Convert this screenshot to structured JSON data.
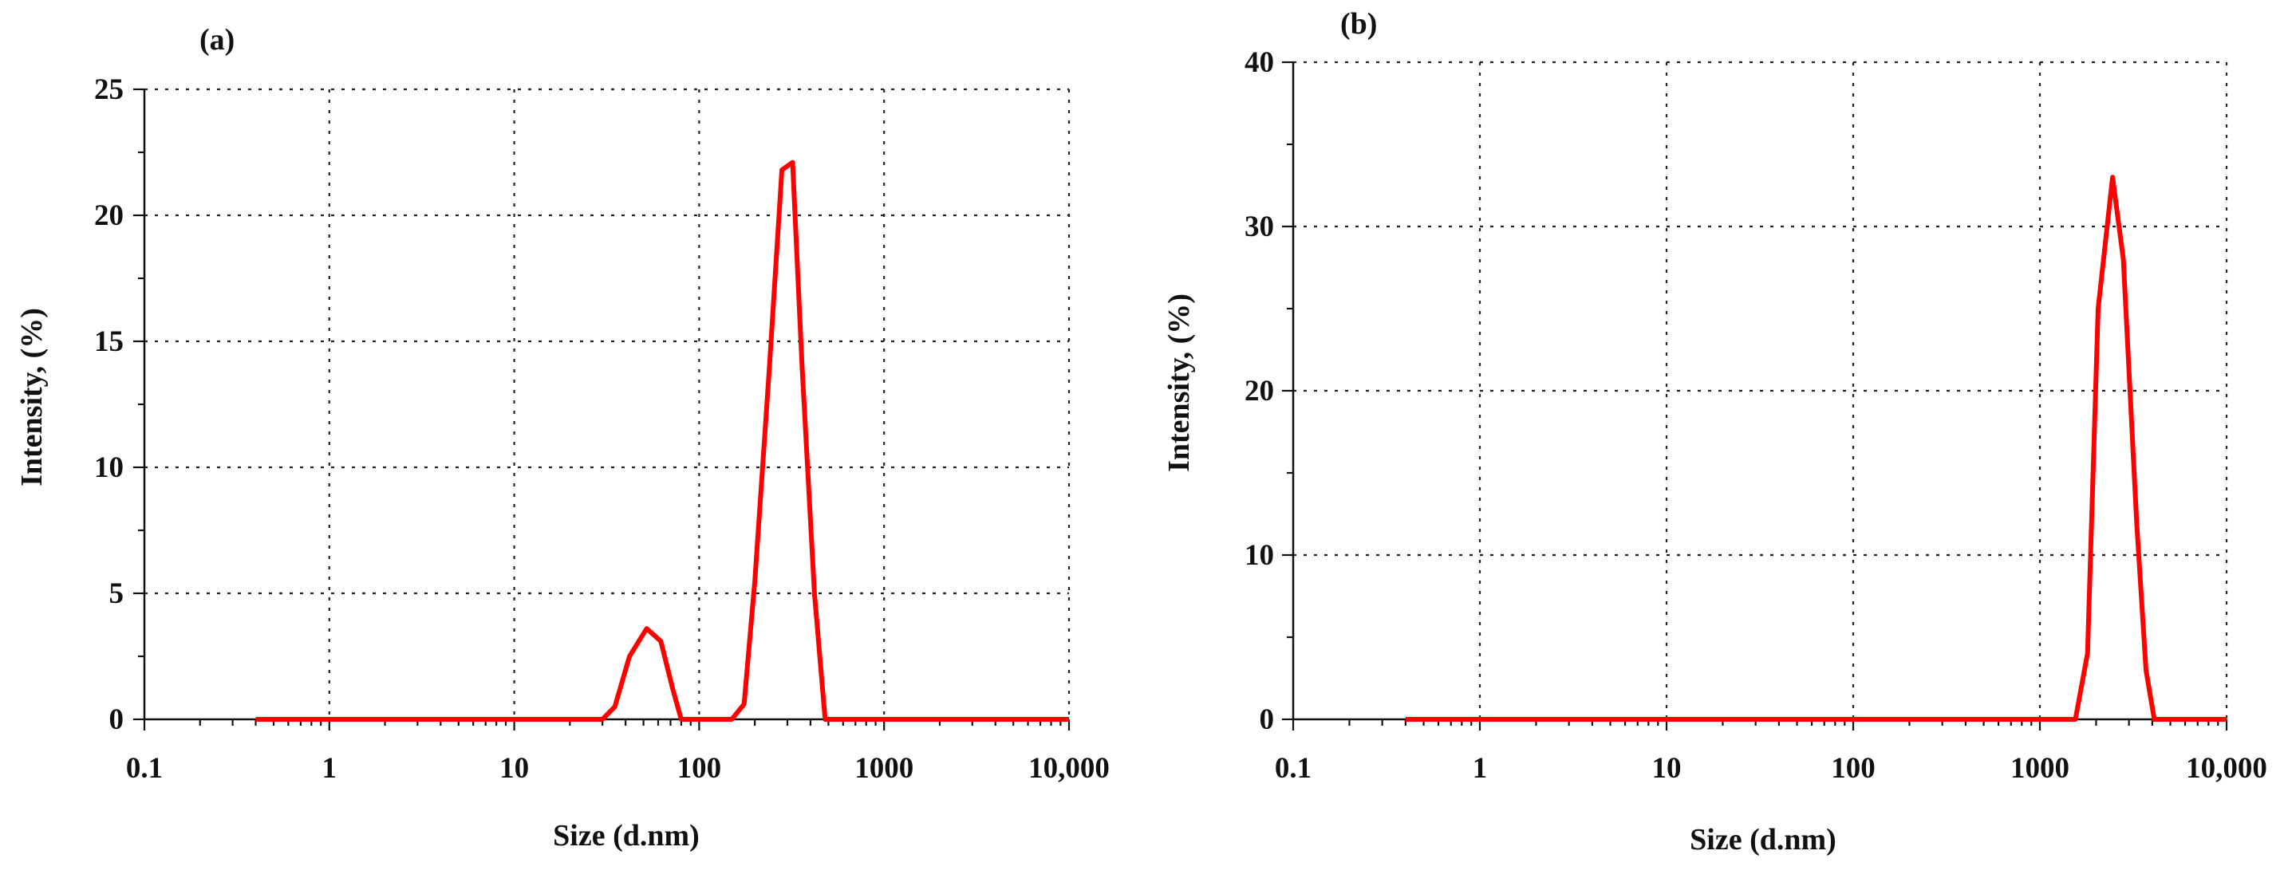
{
  "chart_data": [
    {
      "type": "line",
      "panel_label": "(a)",
      "xlabel": "Size (d.nm)",
      "ylabel": "Intensity, (%)",
      "xscale": "log",
      "xlim": [
        0.1,
        10000
      ],
      "ylim": [
        0,
        25
      ],
      "x_ticks": [
        0.1,
        1,
        10,
        100,
        1000,
        10000
      ],
      "x_tick_labels": [
        "0.1",
        "1",
        "10",
        "100",
        "1000",
        "10,000"
      ],
      "y_ticks": [
        0,
        5,
        10,
        15,
        20,
        25
      ],
      "y_tick_labels": [
        "0",
        "5",
        "10",
        "15",
        "20",
        "25"
      ],
      "grid": true,
      "series": [
        {
          "name": "Intensity",
          "color": "#ff0000",
          "x": [
            0.4,
            30,
            35,
            42,
            52,
            62,
            72,
            80,
            150,
            175,
            200,
            240,
            280,
            320,
            360,
            420,
            480,
            10000
          ],
          "y": [
            0,
            0,
            0.5,
            2.5,
            3.6,
            3.1,
            1.2,
            0,
            0,
            0.6,
            5.5,
            14,
            21.8,
            22.1,
            14,
            5,
            0,
            0
          ]
        }
      ]
    },
    {
      "type": "line",
      "panel_label": "(b)",
      "xlabel": "Size (d.nm)",
      "ylabel": "Intensity, (%)",
      "xscale": "log",
      "xlim": [
        0.1,
        10000
      ],
      "ylim": [
        0,
        40
      ],
      "x_ticks": [
        0.1,
        1,
        10,
        100,
        1000,
        10000
      ],
      "x_tick_labels": [
        "0.1",
        "1",
        "10",
        "100",
        "1000",
        "10,000"
      ],
      "y_ticks": [
        0,
        10,
        20,
        30,
        40
      ],
      "y_tick_labels": [
        "0",
        "10",
        "20",
        "30",
        "40"
      ],
      "grid": true,
      "series": [
        {
          "name": "Intensity",
          "color": "#ff0000",
          "x": [
            0.4,
            1550,
            1800,
            2050,
            2450,
            2800,
            3300,
            3700,
            4100,
            10000
          ],
          "y": [
            0,
            0,
            4,
            25,
            33,
            28,
            12,
            3,
            0,
            0
          ]
        }
      ]
    }
  ]
}
